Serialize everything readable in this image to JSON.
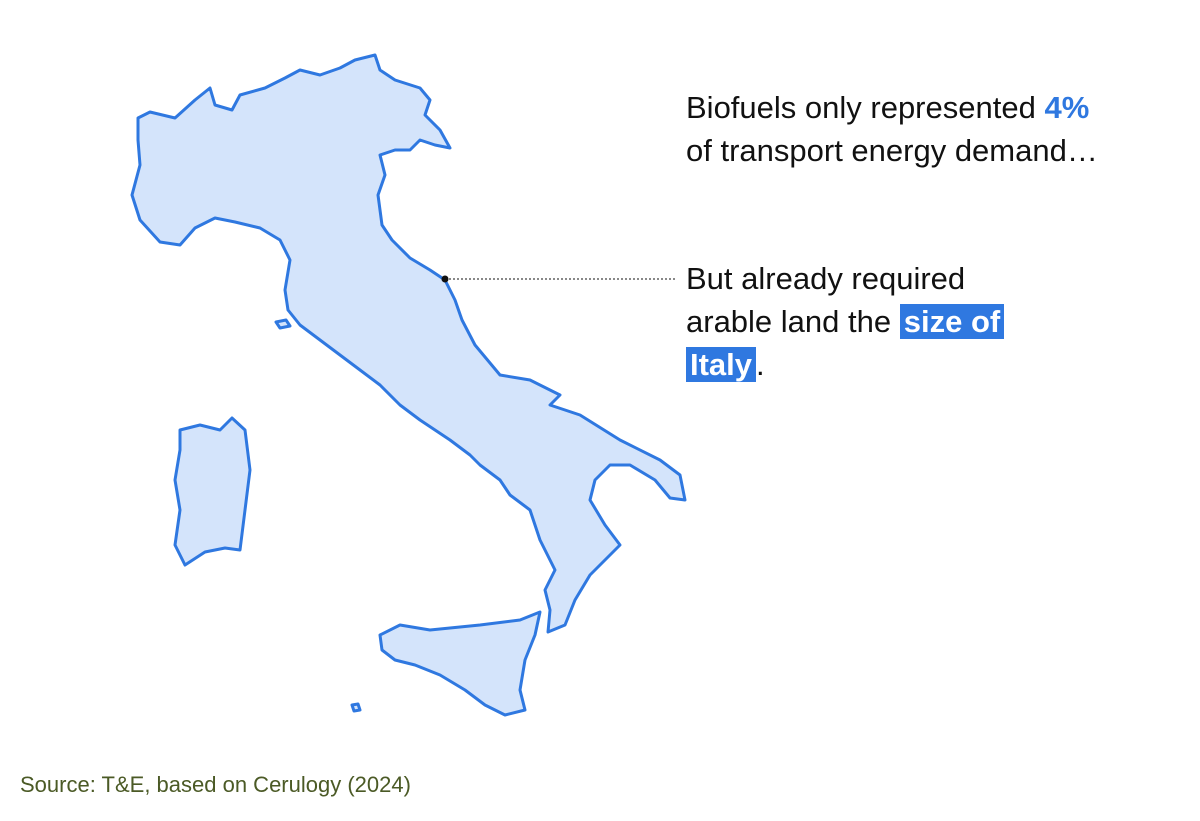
{
  "annotations": [
    {
      "before": "Biofuels only represented",
      "highlight": "4%",
      "after": "of transport energy demand…"
    },
    {
      "before": "But already required arable land the",
      "highlight": "size of Italy",
      "after": "."
    }
  ],
  "source": "Source: T&E, based on Cerulogy (2024)"
}
